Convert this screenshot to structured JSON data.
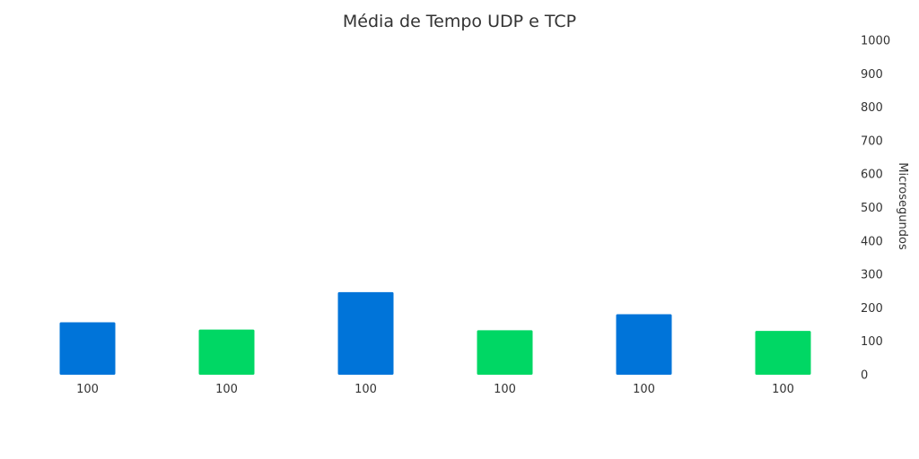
{
  "chart_data": {
    "type": "bar",
    "title": "Média de Tempo UDP e TCP",
    "xlabel": "",
    "ylabel": "Microsegundos",
    "categories": [
      "100",
      "100",
      "100",
      "100",
      "100",
      "100"
    ],
    "values": [
      157,
      135,
      247,
      133,
      181,
      131
    ],
    "bar_colors": [
      "#0074d9",
      "#00d764",
      "#0074d9",
      "#00d764",
      "#0074d9",
      "#00d764"
    ],
    "ylim": [
      0,
      1000
    ],
    "yticks": [
      "0",
      "100",
      "200",
      "300",
      "400",
      "500",
      "600",
      "700",
      "800",
      "900",
      "1000"
    ],
    "y_axis_position": "right",
    "grid": false,
    "legend": false
  }
}
